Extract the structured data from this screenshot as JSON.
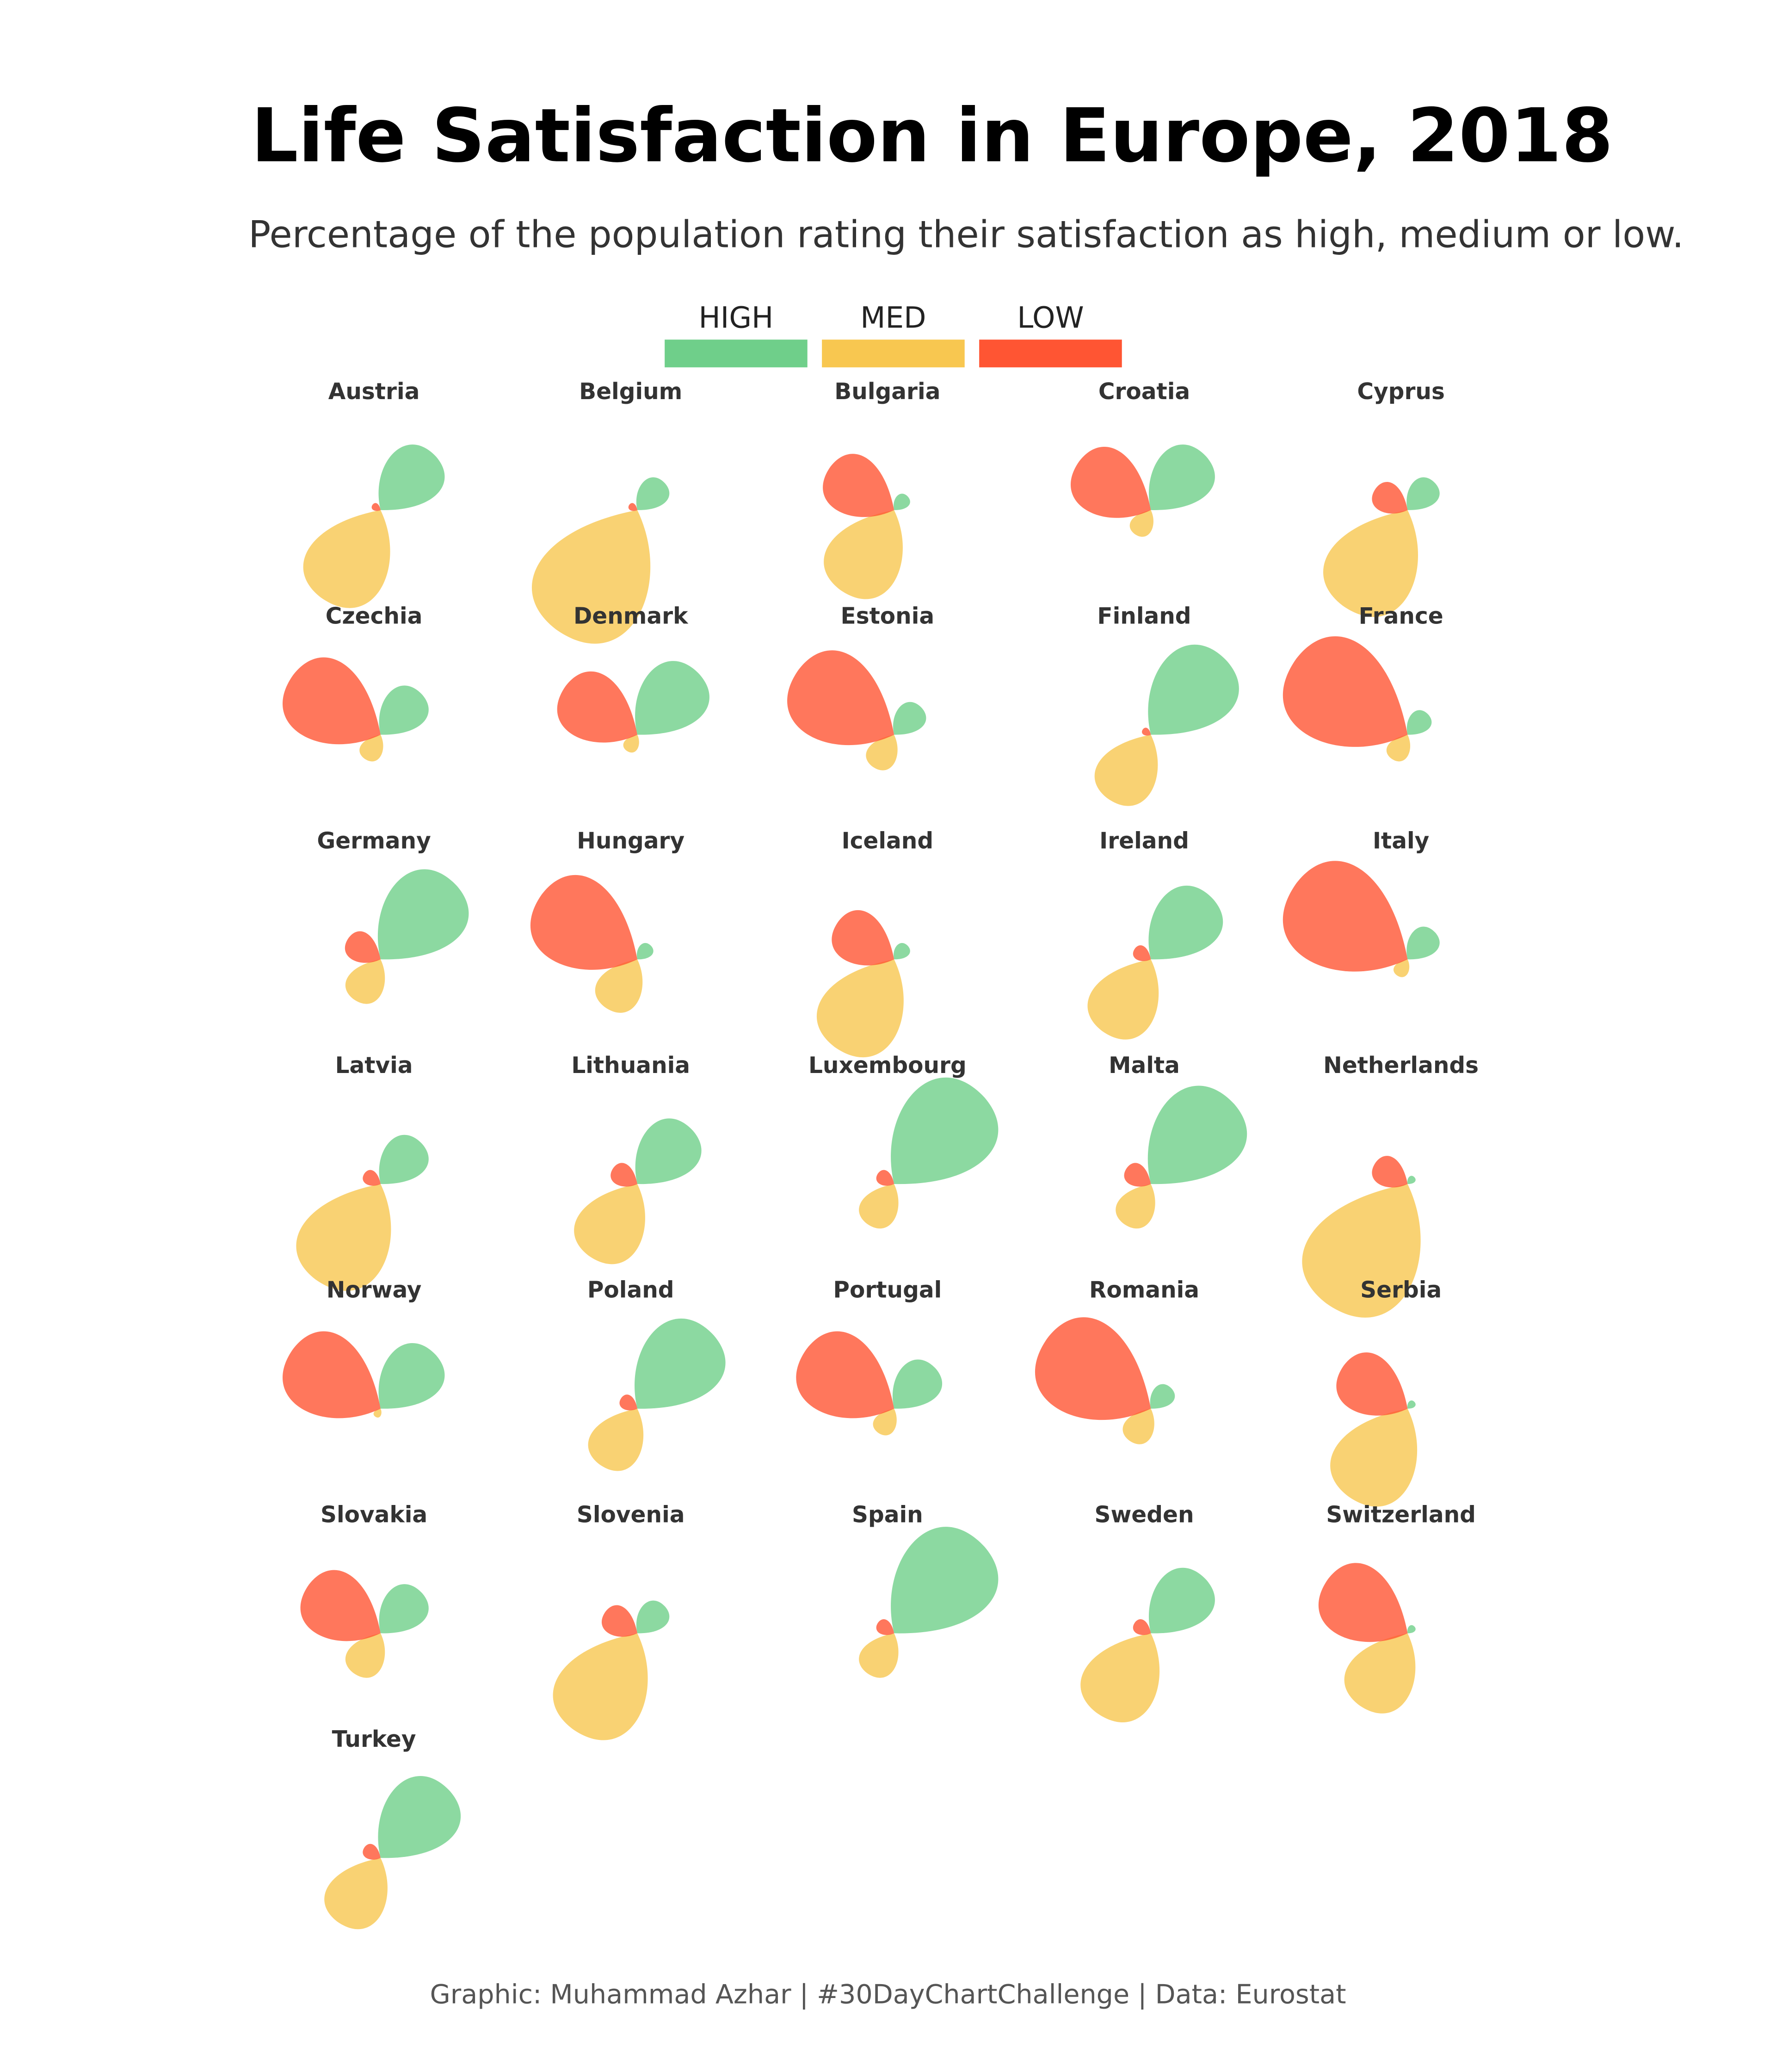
{
  "chart_data": {
    "type": "petal",
    "title": "Life Satisfaction in Europe, 2018",
    "subtitle": "Percentage of the population rating their satisfaction as high, medium or low.",
    "caption": "Graphic: Muhammad Azhar | #30DayChartChallenge | Data: Eurostat",
    "categories": [
      "Austria",
      "Belgium",
      "Bulgaria",
      "Croatia",
      "Cyprus",
      "Czechia",
      "Denmark",
      "Estonia",
      "Finland",
      "France",
      "Germany",
      "Hungary",
      "Iceland",
      "Ireland",
      "Italy",
      "Latvia",
      "Lithuania",
      "Luxembourg",
      "Malta",
      "Netherlands",
      "Norway",
      "Poland",
      "Portugal",
      "Romania",
      "Serbia",
      "Slovakia",
      "Slovenia",
      "Spain",
      "Sweden",
      "Switzerland",
      "Turkey"
    ],
    "series": [
      {
        "name": "HIGH",
        "color": "#6fcf8a",
        "values": [
          40,
          20,
          10,
          40,
          20,
          30,
          45,
          20,
          55,
          15,
          55,
          10,
          10,
          45,
          20,
          30,
          40,
          65,
          60,
          5,
          40,
          55,
          30,
          15,
          5,
          30,
          20,
          65,
          40,
          5,
          50
        ]
      },
      {
        "name": "MED",
        "color": "#f8c750",
        "values": [
          55,
          75,
          50,
          15,
          60,
          15,
          10,
          20,
          40,
          15,
          25,
          30,
          55,
          45,
          10,
          60,
          45,
          25,
          25,
          75,
          5,
          35,
          15,
          20,
          55,
          25,
          60,
          25,
          50,
          45,
          40
        ]
      },
      {
        "name": "LOW",
        "color": "#ff5533",
        "values": [
          5,
          5,
          40,
          45,
          20,
          55,
          45,
          60,
          5,
          70,
          20,
          60,
          35,
          10,
          70,
          10,
          15,
          10,
          15,
          20,
          55,
          10,
          55,
          65,
          40,
          45,
          20,
          10,
          10,
          50,
          10
        ]
      }
    ]
  }
}
